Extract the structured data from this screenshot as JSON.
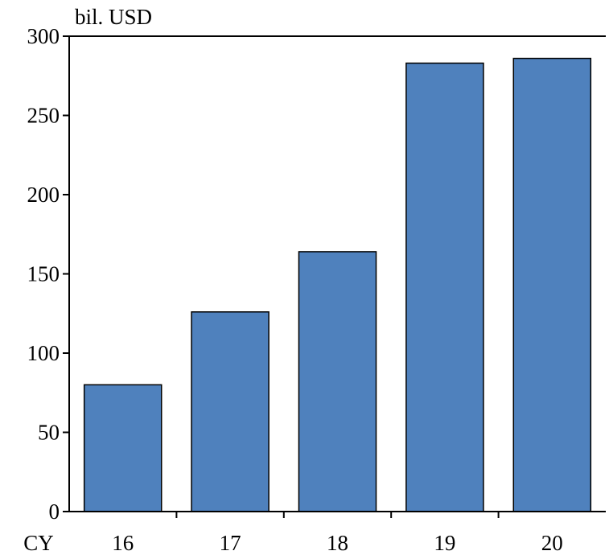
{
  "chart_data": {
    "type": "bar",
    "title": "",
    "unit_label": "bil. USD",
    "xlabel": "CY",
    "ylabel": "",
    "categories": [
      "16",
      "17",
      "18",
      "19",
      "20"
    ],
    "values": [
      80,
      126,
      164,
      283,
      286
    ],
    "ylim": [
      0,
      300
    ],
    "yticks": [
      0,
      50,
      100,
      150,
      200,
      250,
      300
    ],
    "grid": false,
    "legend": "none",
    "colors": {
      "bar_fill": "#4f81bd",
      "bar_stroke": "#000000",
      "axis": "#000000"
    }
  }
}
